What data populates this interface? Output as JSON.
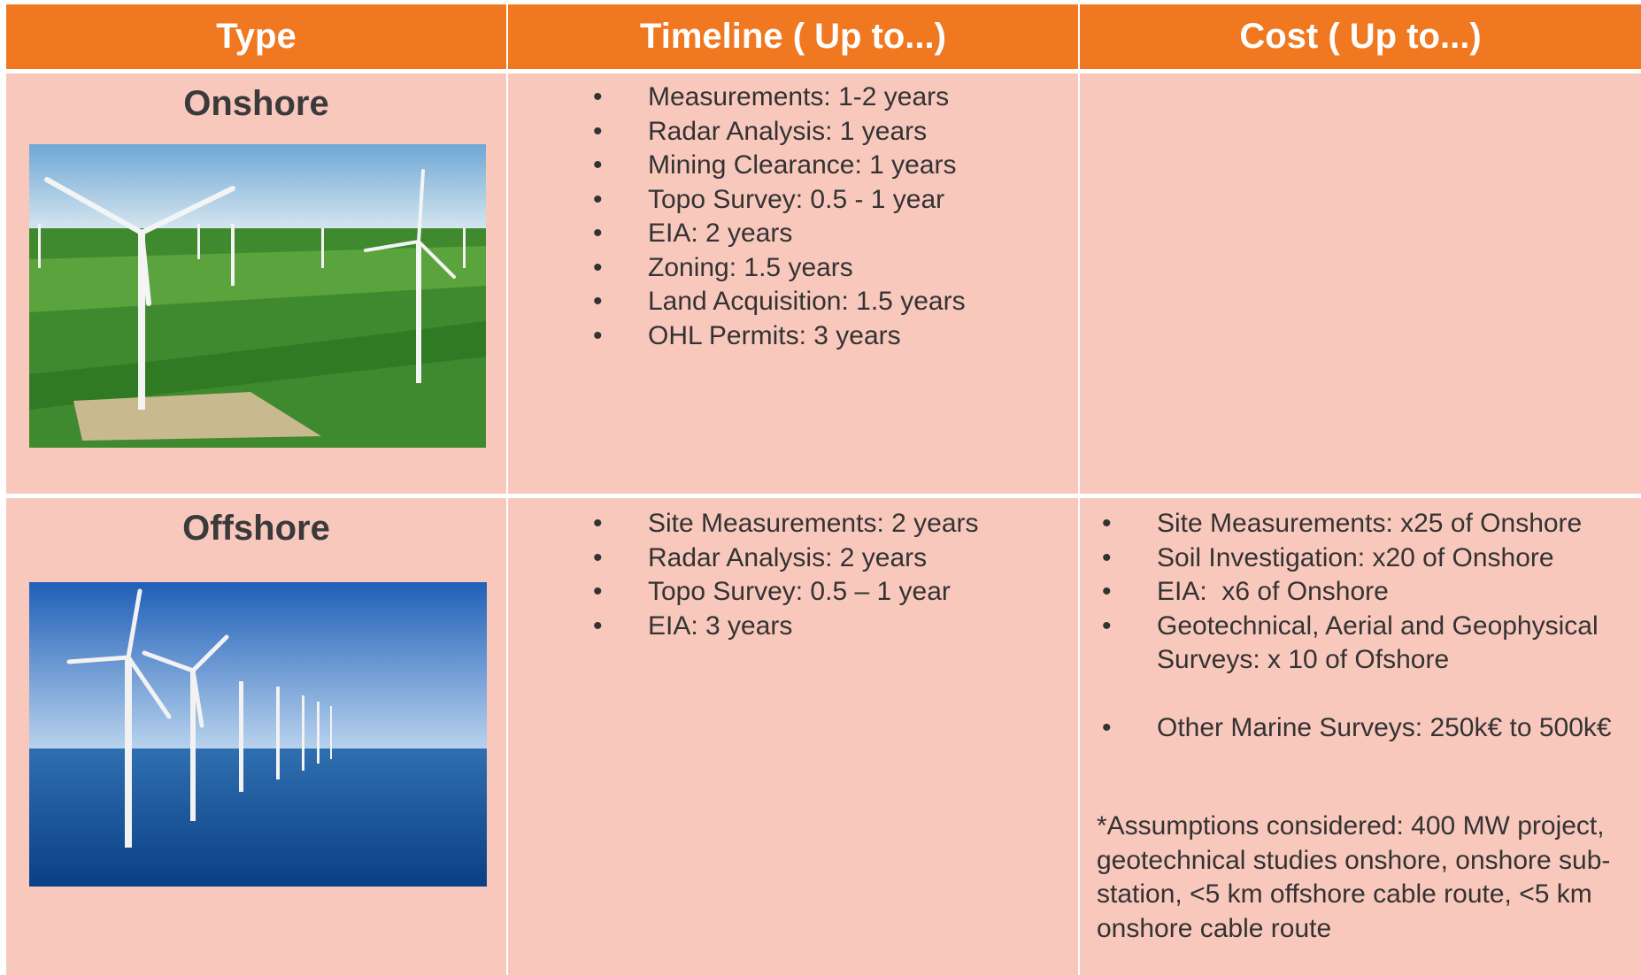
{
  "header": [
    "Type",
    "Timeline ( Up to...)",
    "Cost ( Up to...)"
  ],
  "rows": [
    {
      "type": "Onshore",
      "timeline": [
        "Measurements: 1-2 years",
        "Radar Analysis: 1 years",
        "Mining Clearance: 1 years",
        "Topo Survey: 0.5 - 1 year",
        "EIA: 2 years",
        "Zoning: 1.5 years",
        "Land Acquisition: 1.5 years",
        "OHL Permits: 3 years"
      ],
      "cost": []
    },
    {
      "type": "Offshore",
      "timeline": [
        "Site Measurements: 2 years",
        "Radar Analysis: 2 years",
        "Topo Survey: 0.5 – 1 year",
        "EIA: 3 years"
      ],
      "cost": [
        "Site Measurements: x25 of Onshore",
        "Soil Investigation: x20 of Onshore",
        "EIA:  x6 of Onshore",
        "Geotechnical, Aerial and Geophysical Surveys: x 10 of Ofshore",
        "Other Marine Surveys: 250k€ to 500k€"
      ],
      "note": "*Assumptions considered: 400 MW project, geotechnical studies onshore, onshore sub-station, <5 km offshore cable route, <5 km onshore cable route"
    }
  ]
}
